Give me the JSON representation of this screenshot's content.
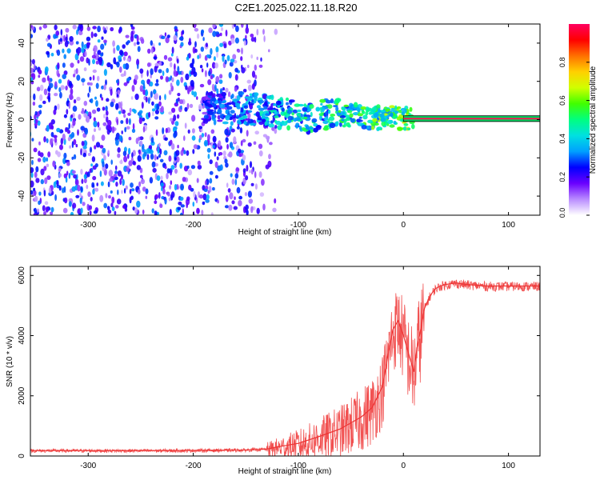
{
  "title": "C2E1.2025.022.11.18.R20",
  "chart_data": [
    {
      "type": "heatmap",
      "xlabel": "Height of straight line (km)",
      "ylabel": "Frequency (Hz)",
      "xlim": [
        -355,
        130
      ],
      "ylim": [
        -50,
        50
      ],
      "xticks": [
        -300,
        -200,
        -100,
        0,
        100
      ],
      "yticks": [
        -40,
        -20,
        0,
        20,
        40
      ],
      "colorbar": {
        "label": "Normalized spectral amplitude",
        "range": [
          0,
          1
        ],
        "ticks": [
          0.0,
          0.2,
          0.4,
          0.6,
          0.8
        ],
        "tick_labels": [
          "0.0",
          "0.2",
          "0.4",
          "0.6",
          "0.8"
        ],
        "colors": [
          "#ffffff",
          "#b98cff",
          "#6a00ff",
          "#0000ff",
          "#00a0ff",
          "#00e0e0",
          "#00ff80",
          "#40ff00",
          "#d0ff00",
          "#ffd000",
          "#ff7000",
          "#ff0000",
          "#ff0060"
        ]
      },
      "features": {
        "noise_region_x": [
          -355,
          -130
        ],
        "noise_amplitude": 0.3,
        "ridge": [
          {
            "x": -190,
            "y": 6.0,
            "a": 0.25
          },
          {
            "x": -160,
            "y": 6.0,
            "a": 0.35
          },
          {
            "x": -130,
            "y": 5.0,
            "a": 0.4
          },
          {
            "x": -110,
            "y": 3.0,
            "a": 0.45
          },
          {
            "x": -90,
            "y": 1.0,
            "a": 0.45
          },
          {
            "x": -70,
            "y": 3.0,
            "a": 0.5
          },
          {
            "x": -50,
            "y": 2.0,
            "a": 0.5
          },
          {
            "x": -30,
            "y": 1.0,
            "a": 0.55
          },
          {
            "x": -10,
            "y": 1.0,
            "a": 0.6
          },
          {
            "x": 0,
            "y": 1.0,
            "a": 0.6
          },
          {
            "x": 10,
            "y": 1.0,
            "a": 0.7
          }
        ],
        "steady_line": {
          "x_start": 0,
          "x_end": 130,
          "y": 0.5,
          "halfwidth": 1.5
        }
      }
    },
    {
      "type": "line",
      "xlabel": "Height of straight line (km)",
      "ylabel": "SNR (10 * v/v)",
      "xlim": [
        -355,
        130
      ],
      "ylim": [
        0,
        6300
      ],
      "xticks": [
        -300,
        -200,
        -100,
        0,
        100
      ],
      "yticks": [
        0,
        2000,
        4000,
        6000
      ],
      "color": "#ee3333",
      "series": [
        {
          "x": [
            -355,
            -300,
            -250,
            -200,
            -150,
            -130,
            -120,
            -100,
            -80,
            -60,
            -50,
            -40,
            -30,
            -20,
            -15,
            -10,
            -5,
            0,
            5,
            10,
            13,
            17,
            20,
            25,
            30,
            35,
            40,
            50,
            60,
            80,
            100,
            120,
            130
          ],
          "y": [
            180,
            180,
            180,
            185,
            200,
            230,
            300,
            420,
            650,
            900,
            1100,
            1300,
            1600,
            2300,
            3300,
            4200,
            4500,
            4000,
            3400,
            2800,
            3600,
            4300,
            4900,
            5300,
            5550,
            5650,
            5700,
            5750,
            5700,
            5650,
            5650,
            5650,
            5650
          ]
        }
      ]
    }
  ]
}
